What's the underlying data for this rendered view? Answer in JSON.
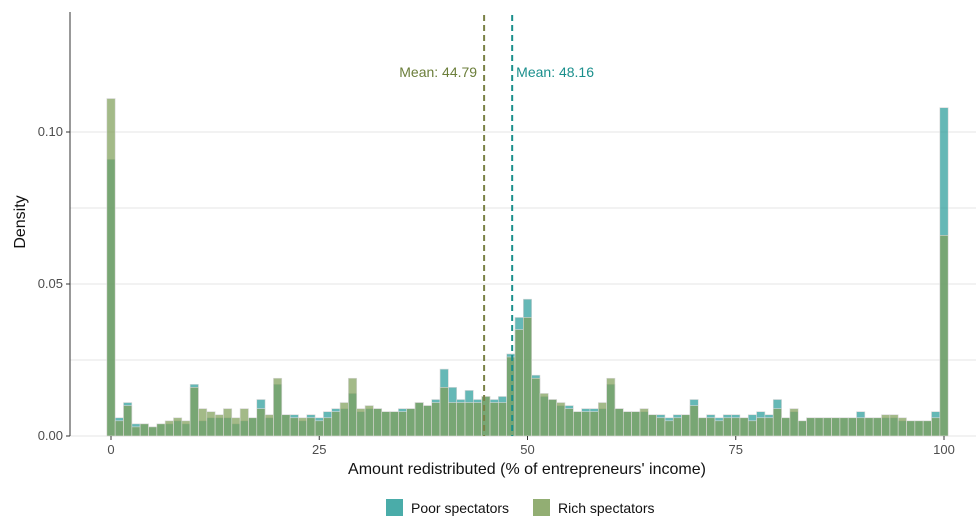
{
  "chart_data": {
    "type": "bar",
    "subtype": "overlaid-histogram",
    "xlabel": "Amount redistributed (% of entrepreneurs' income)",
    "ylabel": "Density",
    "xlim": [
      -3,
      103
    ],
    "ylim": [
      0,
      0.12
    ],
    "x_ticks": [
      0,
      25,
      50,
      75,
      100
    ],
    "x_tick_labels": [
      "0",
      "25",
      "50",
      "75",
      "100"
    ],
    "y_ticks": [
      0,
      0.05,
      0.1
    ],
    "y_tick_labels": [
      "0.00",
      "0.05",
      "0.10"
    ],
    "grid": "horizontal",
    "legend_position": "bottom",
    "bins": {
      "start": 0,
      "width": 1,
      "count": 101
    },
    "series": [
      {
        "name": "Poor spectators",
        "color": "#2a9d9a",
        "values": [
          0.091,
          0.006,
          0.011,
          0.004,
          0.004,
          0.003,
          0.004,
          0.004,
          0.005,
          0.004,
          0.017,
          0.005,
          0.006,
          0.006,
          0.006,
          0.004,
          0.005,
          0.006,
          0.012,
          0.006,
          0.017,
          0.007,
          0.007,
          0.005,
          0.007,
          0.006,
          0.008,
          0.009,
          0.009,
          0.014,
          0.008,
          0.009,
          0.009,
          0.008,
          0.008,
          0.009,
          0.009,
          0.011,
          0.01,
          0.012,
          0.022,
          0.016,
          0.012,
          0.015,
          0.012,
          0.013,
          0.012,
          0.013,
          0.027,
          0.039,
          0.045,
          0.02,
          0.013,
          0.012,
          0.01,
          0.01,
          0.008,
          0.009,
          0.009,
          0.009,
          0.017,
          0.009,
          0.008,
          0.008,
          0.008,
          0.007,
          0.007,
          0.006,
          0.007,
          0.007,
          0.012,
          0.006,
          0.007,
          0.006,
          0.007,
          0.007,
          0.006,
          0.007,
          0.008,
          0.007,
          0.012,
          0.006,
          0.008,
          0.005,
          0.006,
          0.006,
          0.006,
          0.006,
          0.006,
          0.006,
          0.008,
          0.006,
          0.006,
          0.006,
          0.006,
          0.005,
          0.005,
          0.005,
          0.005,
          0.008,
          0.108
        ]
      },
      {
        "name": "Rich spectators",
        "color": "#7fa05a",
        "values": [
          0.111,
          0.005,
          0.01,
          0.003,
          0.004,
          0.003,
          0.004,
          0.005,
          0.006,
          0.005,
          0.016,
          0.009,
          0.008,
          0.007,
          0.009,
          0.006,
          0.009,
          0.006,
          0.009,
          0.007,
          0.019,
          0.007,
          0.006,
          0.006,
          0.006,
          0.005,
          0.006,
          0.008,
          0.011,
          0.019,
          0.009,
          0.01,
          0.009,
          0.008,
          0.008,
          0.008,
          0.009,
          0.011,
          0.01,
          0.011,
          0.016,
          0.011,
          0.011,
          0.011,
          0.011,
          0.013,
          0.011,
          0.011,
          0.026,
          0.035,
          0.039,
          0.019,
          0.014,
          0.012,
          0.011,
          0.009,
          0.008,
          0.008,
          0.008,
          0.011,
          0.019,
          0.009,
          0.008,
          0.008,
          0.009,
          0.007,
          0.006,
          0.005,
          0.006,
          0.007,
          0.01,
          0.006,
          0.006,
          0.005,
          0.006,
          0.006,
          0.006,
          0.005,
          0.006,
          0.006,
          0.009,
          0.006,
          0.009,
          0.005,
          0.006,
          0.006,
          0.006,
          0.006,
          0.006,
          0.006,
          0.006,
          0.006,
          0.006,
          0.007,
          0.007,
          0.006,
          0.005,
          0.005,
          0.005,
          0.006,
          0.066
        ]
      }
    ],
    "annotations": [
      {
        "label": "Mean: 44.79",
        "x": 44.79,
        "color": "#6b7e3a",
        "line_color": "#7a8146",
        "align": "left"
      },
      {
        "label": "Mean: 48.16",
        "x": 48.16,
        "color": "#1a8f8c",
        "line_color": "#1a8f8c",
        "align": "right"
      }
    ]
  }
}
